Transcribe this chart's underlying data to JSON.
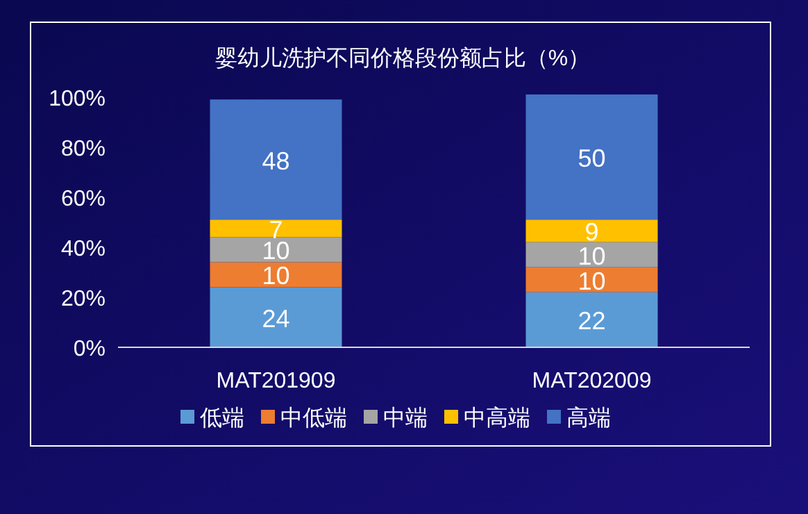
{
  "chart_data": {
    "type": "bar",
    "stacked": true,
    "title": "婴幼儿洗护不同价格段份额占比（%）",
    "categories": [
      "MAT201909",
      "MAT202009"
    ],
    "series": [
      {
        "name": "低端",
        "color": "#5b9bd5",
        "values": [
          24,
          22
        ]
      },
      {
        "name": "中低端",
        "color": "#ed7d31",
        "values": [
          10,
          10
        ]
      },
      {
        "name": "中端",
        "color": "#a5a5a5",
        "values": [
          10,
          10
        ]
      },
      {
        "name": "中高端",
        "color": "#ffc000",
        "values": [
          7,
          9
        ]
      },
      {
        "name": "高端",
        "color": "#4472c4",
        "values": [
          48,
          50
        ]
      }
    ],
    "ylim": [
      0,
      101
    ],
    "yticks": [
      {
        "value": 0,
        "label": "0%"
      },
      {
        "value": 20,
        "label": "20%"
      },
      {
        "value": 40,
        "label": "40%"
      },
      {
        "value": 60,
        "label": "60%"
      },
      {
        "value": 80,
        "label": "80%"
      },
      {
        "value": 100,
        "label": "100%"
      }
    ],
    "data_labels": true,
    "legend": "bottom",
    "grid": false
  }
}
